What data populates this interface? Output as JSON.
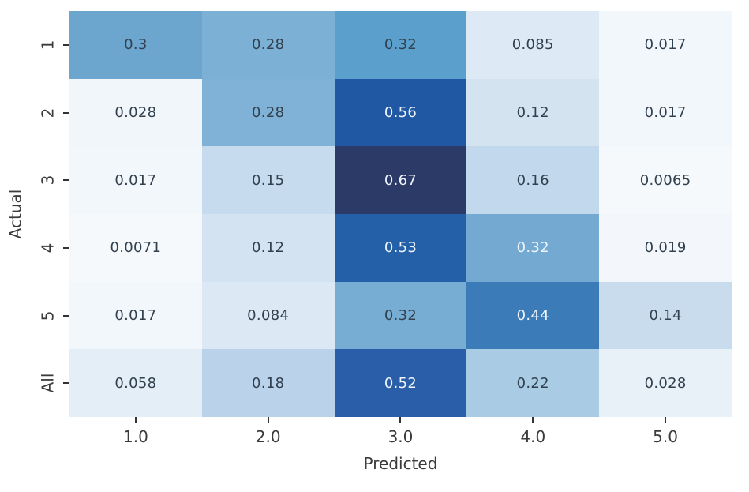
{
  "chart_data": {
    "type": "heatmap",
    "xlabel": "Predicted",
    "ylabel": "Actual",
    "x_ticklabels": [
      "1.0",
      "2.0",
      "3.0",
      "4.0",
      "5.0"
    ],
    "y_ticklabels": [
      "1",
      "2",
      "3",
      "4",
      "5",
      "All"
    ],
    "values": [
      [
        0.3,
        0.28,
        0.32,
        0.085,
        0.017
      ],
      [
        0.028,
        0.28,
        0.56,
        0.12,
        0.017
      ],
      [
        0.017,
        0.15,
        0.67,
        0.16,
        0.0065
      ],
      [
        0.0071,
        0.12,
        0.53,
        0.32,
        0.019
      ],
      [
        0.017,
        0.084,
        0.32,
        0.44,
        0.14
      ],
      [
        0.058,
        0.18,
        0.52,
        0.22,
        0.028
      ]
    ],
    "annotations": [
      [
        "0.3",
        "0.28",
        "0.32",
        "0.085",
        "0.017"
      ],
      [
        "0.028",
        "0.28",
        "0.56",
        "0.12",
        "0.017"
      ],
      [
        "0.017",
        "0.15",
        "0.67",
        "0.16",
        "0.0065"
      ],
      [
        "0.0071",
        "0.12",
        "0.53",
        "0.32",
        "0.019"
      ],
      [
        "0.017",
        "0.084",
        "0.32",
        "0.44",
        "0.14"
      ],
      [
        "0.058",
        "0.18",
        "0.52",
        "0.22",
        "0.028"
      ]
    ],
    "cell_colors": [
      [
        "#6ca6ce",
        "#7cb0d5",
        "#5b9fcc",
        "#dde9f4",
        "#f2f7fb"
      ],
      [
        "#f0f6fa",
        "#7fb2d6",
        "#2158a4",
        "#d4e3f0",
        "#f2f7fb"
      ],
      [
        "#f2f7fb",
        "#c6dbee",
        "#2b3a66",
        "#c2d8ec",
        "#f5f9fc"
      ],
      [
        "#f5f9fc",
        "#d3e3f1",
        "#2360a8",
        "#74aad2",
        "#f3f7fb"
      ],
      [
        "#f2f7fb",
        "#dce8f4",
        "#78add3",
        "#3b7cb8",
        "#c8dcee"
      ],
      [
        "#e4eef7",
        "#bad3ea",
        "#2a5ea8",
        "#a9cbe4",
        "#e9f1f8"
      ]
    ],
    "text_colors": [
      [
        "dark",
        "dark",
        "dark",
        "dark",
        "dark"
      ],
      [
        "dark",
        "dark",
        "light",
        "dark",
        "dark"
      ],
      [
        "dark",
        "dark",
        "light",
        "dark",
        "dark"
      ],
      [
        "dark",
        "dark",
        "light",
        "light",
        "dark"
      ],
      [
        "dark",
        "dark",
        "dark",
        "light",
        "dark"
      ],
      [
        "dark",
        "dark",
        "light",
        "dark",
        "dark"
      ]
    ],
    "colormap": "Blues",
    "vmin": 0.0065,
    "vmax": 0.67,
    "grid": false,
    "legend": "none"
  },
  "colors": {
    "annotation_dark": "#31404e",
    "annotation_light": "#f0f5fc",
    "tick_label": "#3b3b3b",
    "axis_label": "#3b3b3b",
    "tick_mark": "#333333",
    "background": "#ffffff"
  }
}
